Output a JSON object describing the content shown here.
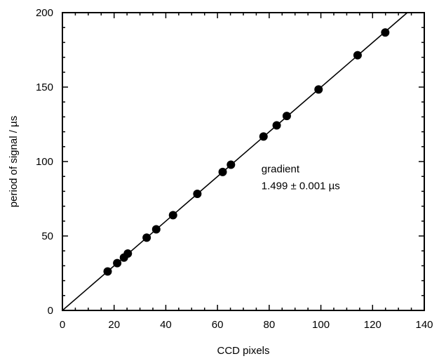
{
  "chart_data": {
    "type": "scatter",
    "title": "",
    "xlabel": "CCD pixels",
    "ylabel": "period of signal / µs",
    "xlim": [
      0,
      140
    ],
    "ylim": [
      0,
      200
    ],
    "xticks": [
      0,
      20,
      40,
      60,
      80,
      100,
      120,
      140
    ],
    "yticks": [
      0,
      50,
      100,
      150,
      200
    ],
    "xtick_labels": [
      "0",
      "20",
      "40",
      "60",
      "80",
      "100",
      "120",
      "140"
    ],
    "ytick_labels": [
      "0",
      "50",
      "100",
      "150",
      "200"
    ],
    "grid": false,
    "legend": "none",
    "series": [
      {
        "x": [
          17.5,
          21.2,
          23.8,
          25.3,
          32.6,
          36.3,
          42.8,
          52.2,
          62.0,
          65.2,
          77.8,
          82.9,
          86.8,
          99.1,
          114.2,
          124.9
        ],
        "y": [
          26.2,
          31.8,
          35.5,
          38.2,
          48.9,
          54.5,
          64.0,
          78.3,
          93.0,
          97.9,
          116.8,
          124.3,
          130.6,
          148.4,
          171.4,
          186.7
        ],
        "color": "#000000"
      }
    ],
    "fit_line": {
      "slope": 1.499,
      "intercept": 0,
      "color": "#000000"
    },
    "annotation": {
      "line1": "gradient",
      "line2": "1.499 ± 0.001 µs",
      "x": 77,
      "y": 95
    }
  }
}
